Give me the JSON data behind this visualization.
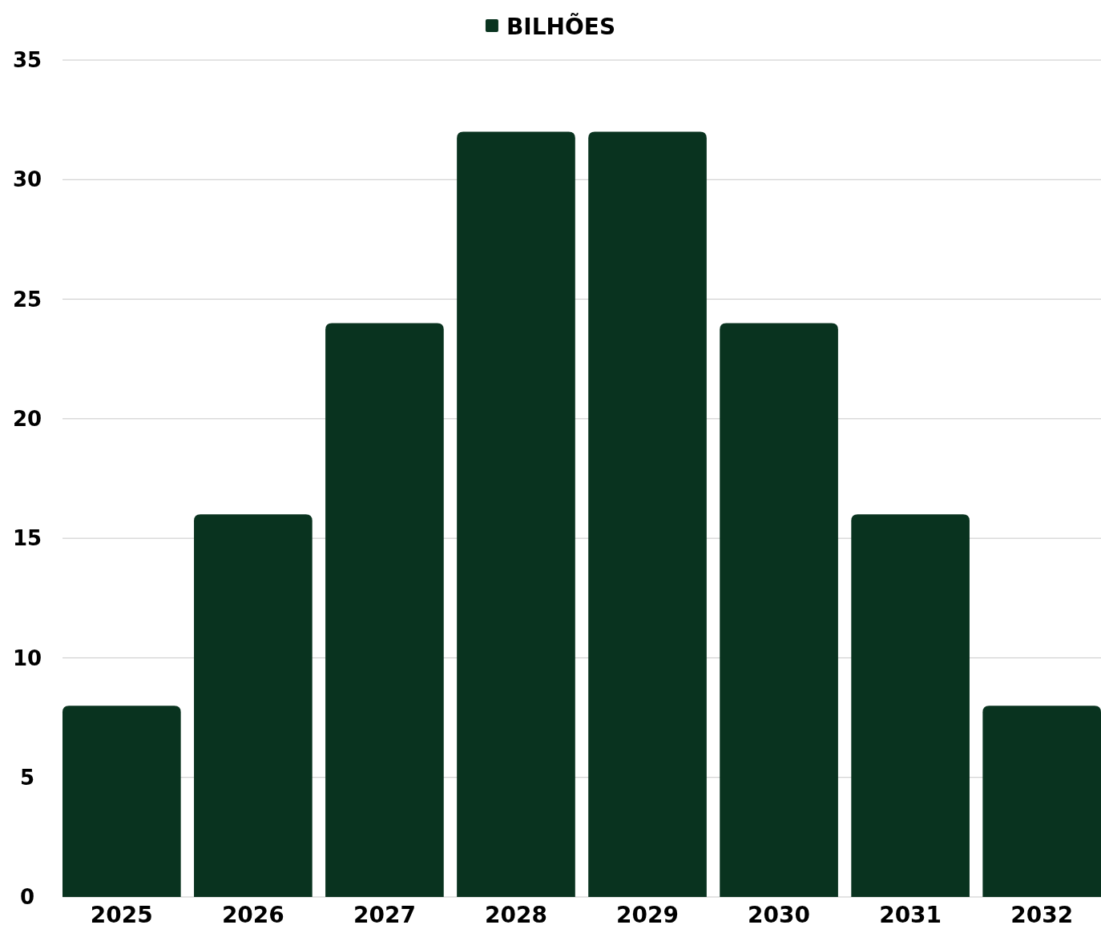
{
  "chart_data": {
    "type": "bar",
    "categories": [
      "2025",
      "2026",
      "2027",
      "2028",
      "2029",
      "2030",
      "2031",
      "2032"
    ],
    "series": [
      {
        "name": "BILHÕES",
        "color": "#09331f",
        "values": [
          8,
          16,
          24,
          32,
          32,
          24,
          16,
          8
        ]
      }
    ],
    "ylim": [
      0,
      35
    ],
    "yticks": [
      0,
      5,
      10,
      15,
      20,
      25,
      30,
      35
    ],
    "grid": "y",
    "legend": "top"
  }
}
